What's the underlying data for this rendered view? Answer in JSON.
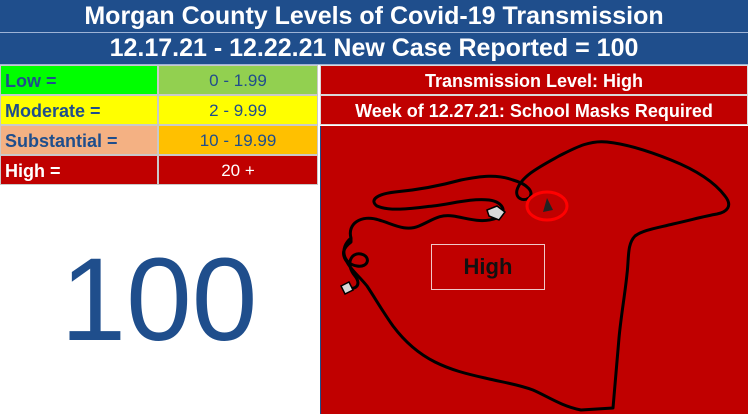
{
  "header": {
    "title": "Morgan County Levels of Covid-19 Transmission",
    "subtitle": "12.17.21 - 12.22.21 New Case Reported = 100"
  },
  "legend": [
    {
      "label": "Low =",
      "range": "0 - 1.99",
      "label_bg": "#00ff00",
      "label_color": "#1f4e8c",
      "range_bg": "#92d050",
      "range_color": "#1f4e8c"
    },
    {
      "label": "Moderate =",
      "range": "2 - 9.99",
      "label_bg": "#ffff00",
      "label_color": "#1f4e8c",
      "range_bg": "#ffff00",
      "range_color": "#1f4e8c"
    },
    {
      "label": "Substantial =",
      "range": "10 - 19.99",
      "label_bg": "#f4b183",
      "label_color": "#1f4e8c",
      "range_bg": "#ffc000",
      "range_color": "#1f4e8c"
    },
    {
      "label": "High =",
      "range": "20 +",
      "label_bg": "#c00000",
      "label_color": "#ffffff",
      "range_bg": "#c00000",
      "range_color": "#ffffff"
    }
  ],
  "case_count": "100",
  "status": {
    "transmission_level": "Transmission Level: High",
    "school_notice": "Week of 12.27.21: School Masks Required"
  },
  "map": {
    "label": "High",
    "fill_color": "#c00000",
    "outline_color": "#000000",
    "marker_color": "#ff0000"
  },
  "colors": {
    "title_bg": "#1f4e8c",
    "number_color": "#1f4e8c"
  }
}
